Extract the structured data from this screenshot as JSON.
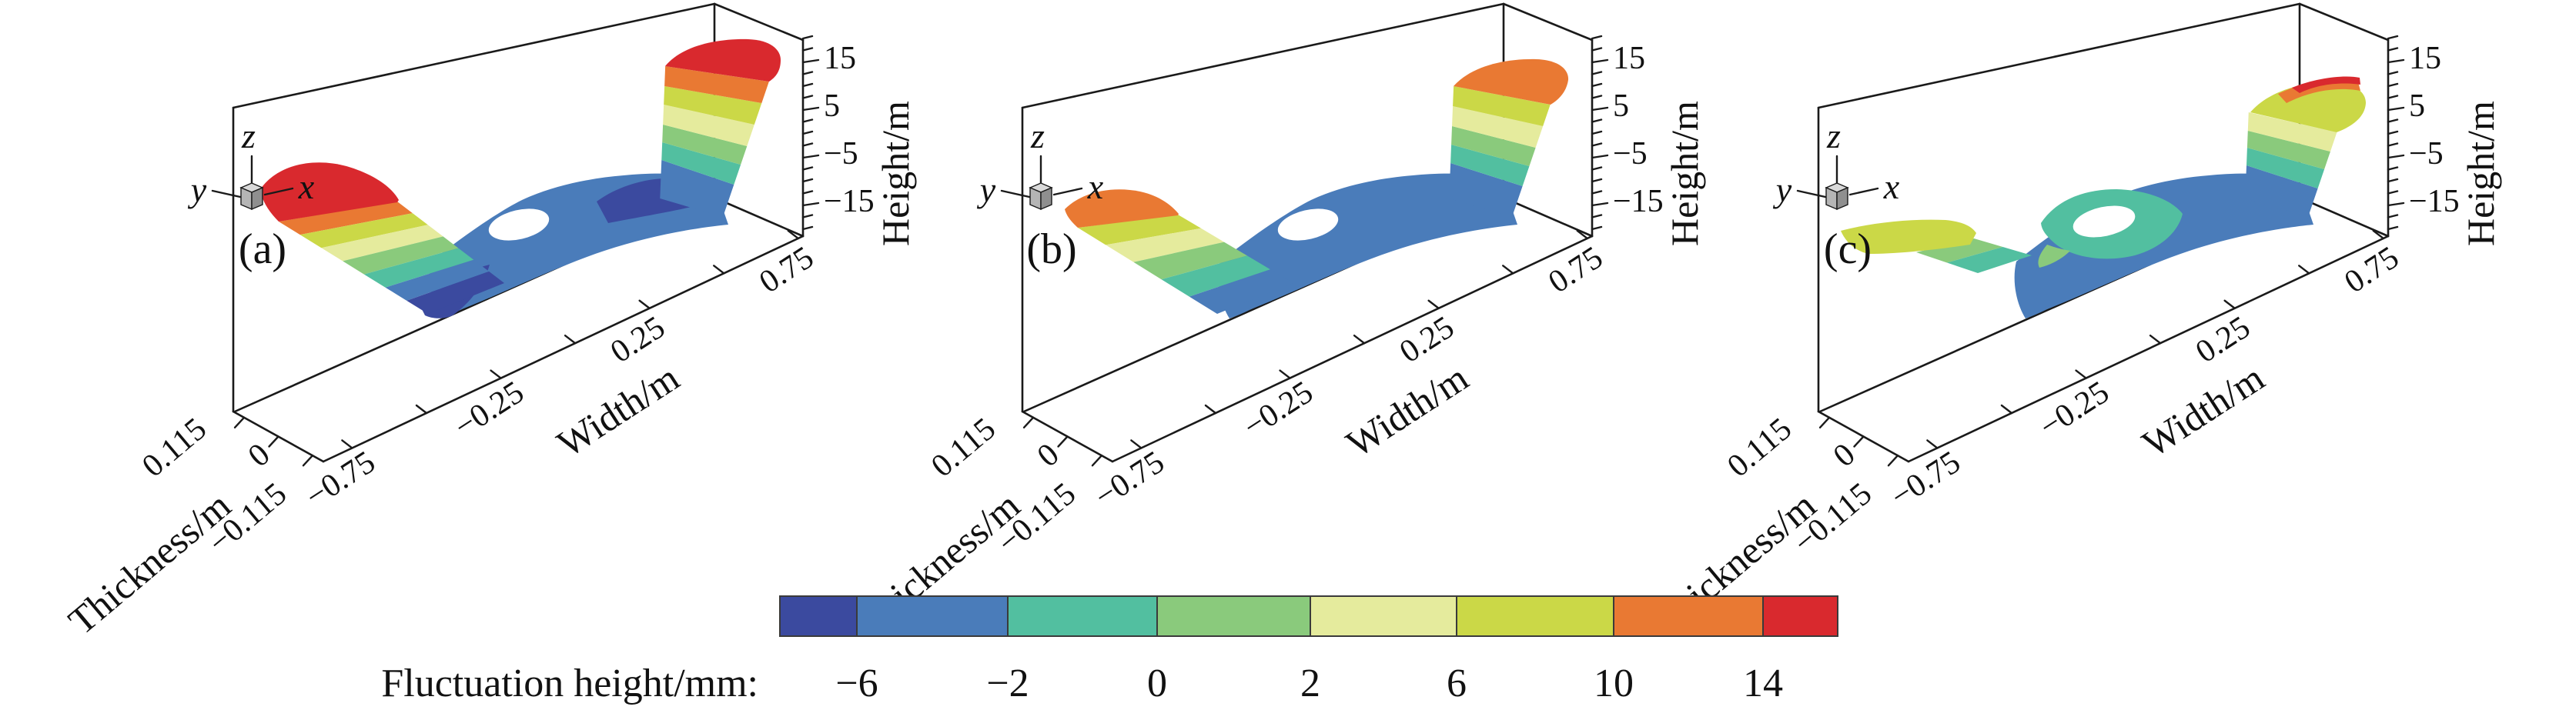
{
  "figure": {
    "kind": "3d-surface-comparison",
    "background": "#ffffff",
    "description": "Three 3D surface plots (a), (b), (c) of strip fluctuation height with a shared discrete color scale"
  },
  "palette": {
    "navy": "#3b4a9f",
    "blue": "#4a7cba",
    "teal": "#52bfa0",
    "green": "#8aca7c",
    "pale_yellow": "#e5eb9d",
    "yellow_green": "#cbd847",
    "orange": "#e97933",
    "red": "#d9292e",
    "hole": "#ffffff",
    "line": "#1a1a1a",
    "cube_face": "#b5b5b5",
    "cube_top": "#d9d9d9",
    "cube_side": "#8f8f8f"
  },
  "triad": {
    "x": "x",
    "y": "y",
    "z": "z"
  },
  "axes": {
    "height": {
      "label": "Height/m",
      "ticks": [
        "15",
        "5",
        "−5",
        "−15"
      ]
    },
    "width": {
      "label": "Width/m",
      "ticks": [
        "−0.75",
        "−0.25",
        "0.25",
        "0.75"
      ]
    },
    "thickness": {
      "label": "Thickness/m",
      "ticks": [
        "0.115",
        "0",
        "−0.115"
      ]
    }
  },
  "panels": [
    {
      "id": "a",
      "label": "(a)"
    },
    {
      "id": "b",
      "label": "(b)"
    },
    {
      "id": "c",
      "label": "(c)"
    }
  ],
  "colorbar": {
    "title": "Fluctuation height/mm:",
    "tick_labels": [
      "−6",
      "−2",
      "0",
      "2",
      "6",
      "10",
      "14"
    ],
    "segment_colors": [
      "navy",
      "blue",
      "teal",
      "green",
      "pale_yellow",
      "yellow_green",
      "orange",
      "red"
    ]
  },
  "chart_data": {
    "type": "heatmap",
    "subtype": "3d-surface",
    "title": "",
    "panels": [
      {
        "label": "(a)",
        "left_end_mm": "14+ (red peak)",
        "left_slope_mm": "cascades 14 down to below −6",
        "mid_strip_mm": "−6 to −2 (blue)",
        "local_dips_mm": "below −6 (navy patches near both bends)",
        "around_hole_mm": "−6 to −2",
        "right_end_mm": "14+ (red plateau)"
      },
      {
        "label": "(b)",
        "left_end_mm": "10 to 14 (orange tip)",
        "left_slope_mm": "cascades 10 down to −6",
        "mid_strip_mm": "−6 to −2 (blue)",
        "local_dips_mm": "none prominent",
        "around_hole_mm": "−6 to −2",
        "right_end_mm": "10 to 14 (orange plateau)"
      },
      {
        "label": "(c)",
        "left_end_mm": "6 to 10 (flat yellow-green tab)",
        "left_slope_mm": "short green/teal fringe",
        "mid_strip_mm": "−6 to −2 (blue)",
        "local_dips_mm": "none",
        "around_hole_mm": "−2 to 0 (teal region around hole)",
        "right_end_mm": "6 to 10 plateau with small 14+ streak at crest"
      }
    ],
    "surface_feature": "long strip with white elliptical cutout hole near centre, flat in the middle, turned up at both ends",
    "axis_ranges": {
      "width_m": [
        -0.75,
        0.75
      ],
      "thickness_m": [
        -0.115,
        0.115
      ],
      "height_axis_labels_m": [
        -15,
        15
      ]
    },
    "width_ticks": [
      -0.75,
      -0.25,
      0.25,
      0.75
    ],
    "thickness_ticks": [
      0.115,
      0,
      -0.115
    ],
    "height_ticks": [
      15,
      5,
      -5,
      -15
    ],
    "colorbar_levels_mm": [
      -6,
      -2,
      0,
      2,
      6,
      10,
      14
    ],
    "colorbar_colors": [
      "#3b4a9f",
      "#4a7cba",
      "#52bfa0",
      "#8aca7c",
      "#e5eb9d",
      "#cbd847",
      "#e97933",
      "#d9292e"
    ],
    "legend_position": "bottom-center",
    "grid": false
  }
}
